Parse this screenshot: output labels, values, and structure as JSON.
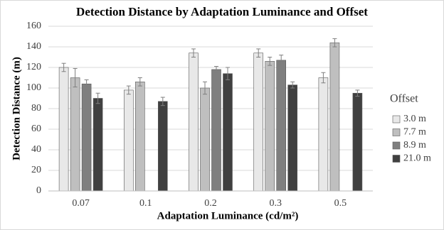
{
  "chart_data": {
    "type": "bar",
    "title": "Detection Distance by Adaptation Luminance and Offset",
    "x_label": "Adaptation Luminance (cd/m²)",
    "y_label": "Detection Distance (m)",
    "legend_title": "Offset",
    "legend": "right",
    "grid": true,
    "categories": [
      "0.07",
      "0.1",
      "0.2",
      "0.3",
      "0.5"
    ],
    "ylim": [
      0,
      160
    ],
    "yticks": [
      0,
      20,
      40,
      60,
      80,
      100,
      120,
      140,
      160
    ],
    "series": [
      {
        "name": "3.0 m",
        "color": "#e8e8e8",
        "values": [
          120,
          98,
          134,
          134,
          110
        ],
        "errors": [
          4,
          4,
          4,
          4,
          5
        ]
      },
      {
        "name": "7.7 m",
        "color": "#bfbfbf",
        "values": [
          110,
          106,
          100,
          126,
          144
        ],
        "errors": [
          9,
          4,
          6,
          4,
          4
        ]
      },
      {
        "name": "8.9 m",
        "color": "#7f7f7f",
        "values": [
          104,
          null,
          118,
          127,
          null
        ],
        "errors": [
          4,
          null,
          3,
          5,
          null
        ]
      },
      {
        "name": "21.0 m",
        "color": "#404040",
        "values": [
          90,
          87,
          114,
          103,
          95
        ],
        "errors": [
          5,
          4,
          6,
          3,
          3
        ]
      }
    ]
  }
}
